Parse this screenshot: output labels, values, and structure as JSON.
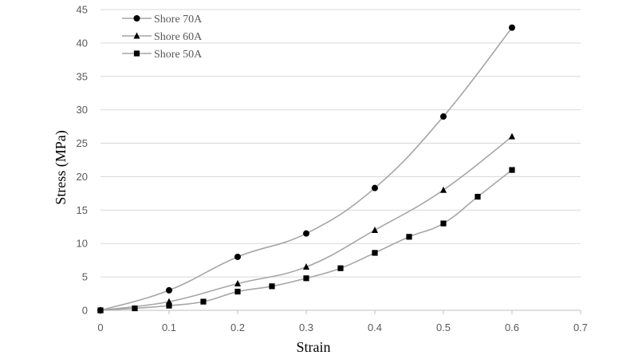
{
  "chart_data": {
    "type": "line",
    "xlabel": "Strain",
    "ylabel": "Stress (MPa)",
    "xlim": [
      0,
      0.7
    ],
    "ylim": [
      0,
      45
    ],
    "xticks": [
      "0",
      "0.1",
      "0.2",
      "0.3",
      "0.4",
      "0.5",
      "0.6",
      "0.7"
    ],
    "yticks": [
      "0",
      "5",
      "10",
      "15",
      "20",
      "25",
      "30",
      "35",
      "40",
      "45"
    ],
    "grid": "horizontal",
    "legend_position": "top-left",
    "line_color": "#a6a6a6",
    "marker_color": "#000000",
    "series": [
      {
        "name": "Shore 70A",
        "marker": "circle",
        "x": [
          0,
          0.1,
          0.2,
          0.3,
          0.4,
          0.5,
          0.6
        ],
        "y": [
          0,
          3.0,
          8.0,
          11.5,
          18.3,
          29.0,
          42.3
        ]
      },
      {
        "name": "Shore 60A",
        "marker": "triangle",
        "x": [
          0,
          0.1,
          0.2,
          0.3,
          0.4,
          0.5,
          0.6
        ],
        "y": [
          0,
          1.3,
          4.0,
          6.5,
          12.0,
          18.0,
          26.0
        ]
      },
      {
        "name": "Shore 50A",
        "marker": "square",
        "x": [
          0,
          0.05,
          0.1,
          0.15,
          0.2,
          0.25,
          0.3,
          0.35,
          0.4,
          0.45,
          0.5,
          0.55,
          0.6
        ],
        "y": [
          0,
          0.3,
          0.7,
          1.3,
          2.8,
          3.6,
          4.8,
          6.3,
          8.6,
          11.0,
          13.0,
          17.0,
          21.0
        ]
      }
    ]
  }
}
